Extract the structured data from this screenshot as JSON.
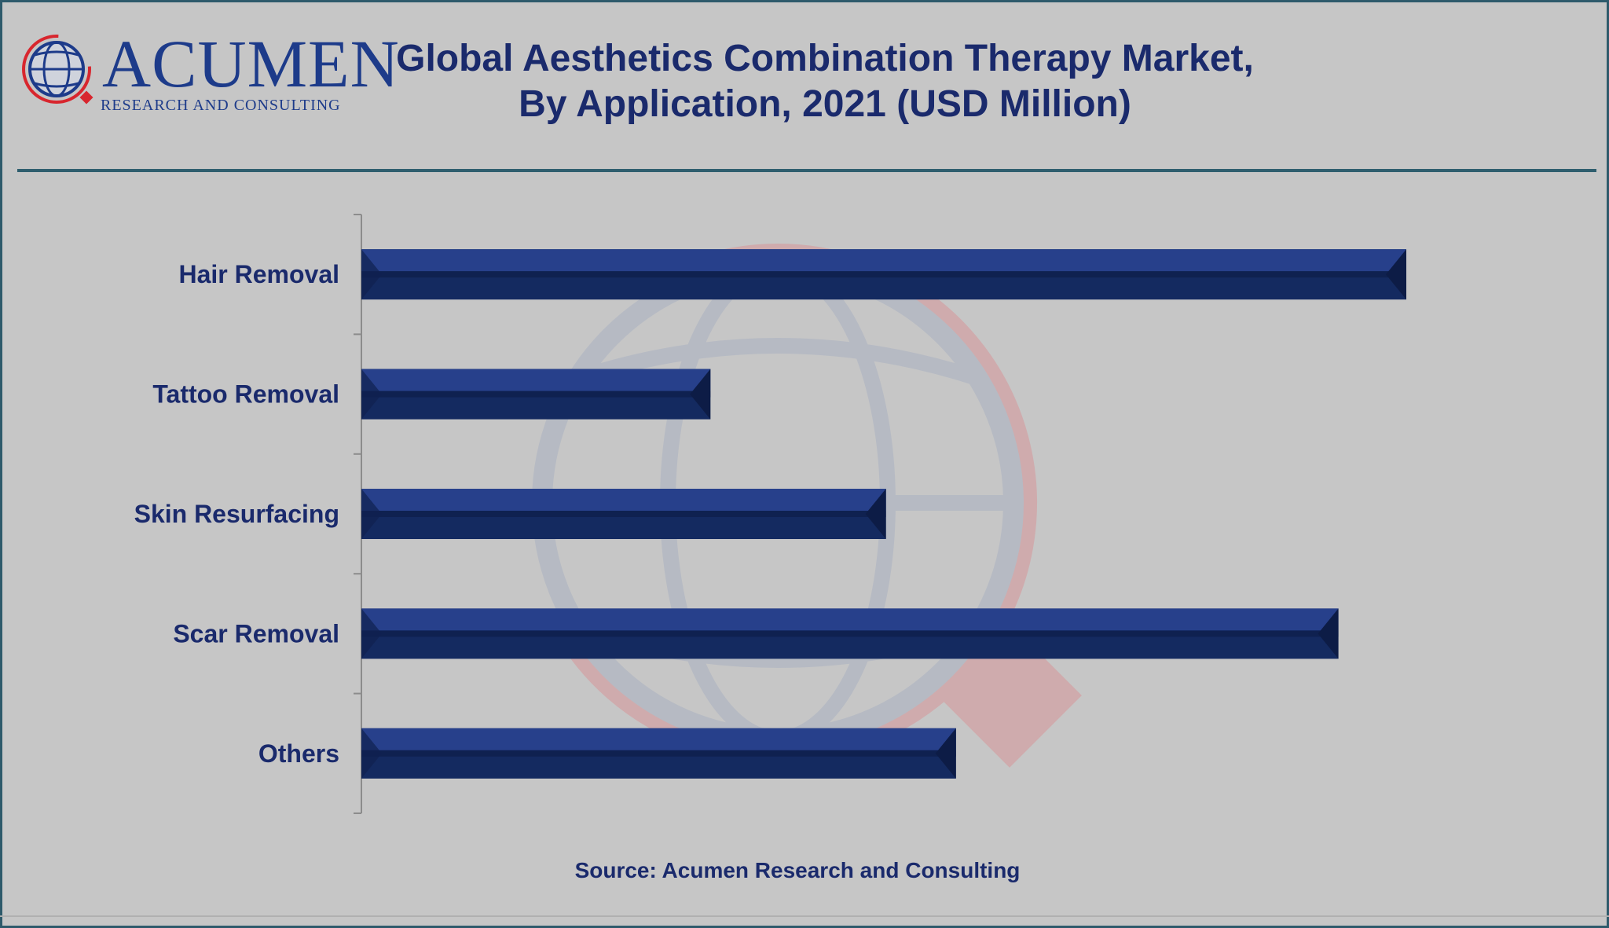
{
  "logo": {
    "word": "ACUMEN",
    "subtitle": "RESEARCH AND CONSULTING"
  },
  "title_line1": "Global Aesthetics Combination Therapy Market,",
  "title_line2": "By Application, 2021 (USD Million)",
  "source": "Source: Acumen Research and Consulting",
  "colors": {
    "bar": "#27408b",
    "bar_dark": "#142a60",
    "text": "#1a2a6c",
    "brand_red": "#d8262e"
  },
  "chart_data": {
    "type": "bar",
    "orientation": "horizontal",
    "categories": [
      "Hair Removal",
      "Tattoo Removal",
      "Skin Resurfacing",
      "Scar Removal",
      "Others"
    ],
    "series": [
      {
        "values": [
          100,
          33.4,
          50.2,
          93.5,
          56.9
        ]
      }
    ],
    "xlim": [
      0,
      100
    ],
    "xlabel": "",
    "ylabel": "",
    "grid": false,
    "legend": "none",
    "note": "values estimated relative to largest bar; no value axis printed"
  }
}
